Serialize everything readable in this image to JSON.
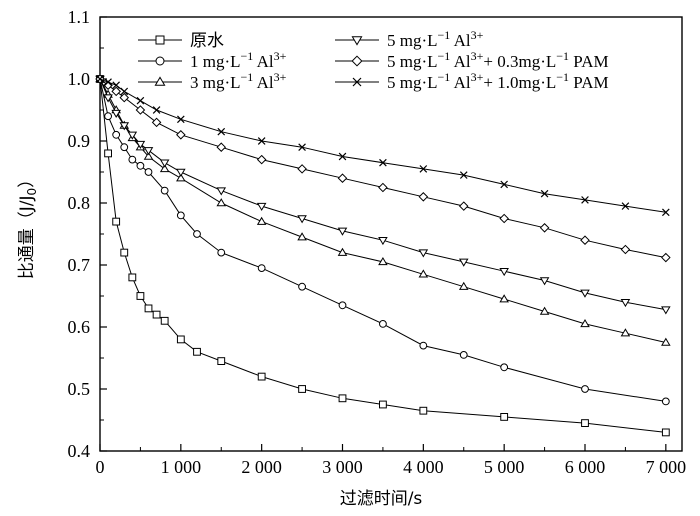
{
  "chart_data": {
    "type": "line",
    "xlabel": "过滤时间/s",
    "ylabel_main": "比通量（J/J",
    "ylabel_sub": "0",
    "ylabel_end": "）",
    "xlim": [
      0,
      7200
    ],
    "ylim": [
      0.4,
      1.1
    ],
    "xticks": [
      0,
      1000,
      2000,
      3000,
      4000,
      5000,
      6000,
      7000
    ],
    "xtick_labels": [
      "0",
      "1 000",
      "2 000",
      "3 000",
      "4 000",
      "5 000",
      "6 000",
      "7 000"
    ],
    "yticks": [
      0.4,
      0.5,
      0.6,
      0.7,
      0.8,
      0.9,
      1.0,
      1.1
    ],
    "ytick_labels": [
      "0.4",
      "0.5",
      "0.6",
      "0.7",
      "0.8",
      "0.9",
      "1.0",
      "1.1"
    ],
    "grid": false,
    "legend_position": "top",
    "series": [
      {
        "name": "原水",
        "label_parts": [
          "原水"
        ],
        "marker": "square",
        "color": "#000000",
        "x": [
          0,
          100,
          200,
          300,
          400,
          500,
          600,
          700,
          800,
          1000,
          1200,
          1500,
          2000,
          2500,
          3000,
          3500,
          4000,
          5000,
          6000,
          7000
        ],
        "y": [
          1.0,
          0.88,
          0.77,
          0.72,
          0.68,
          0.65,
          0.63,
          0.62,
          0.61,
          0.58,
          0.56,
          0.545,
          0.52,
          0.5,
          0.485,
          0.475,
          0.465,
          0.455,
          0.445,
          0.43
        ]
      },
      {
        "name": "1 mg·L−1 Al3+",
        "label_parts": [
          "1 mg·L",
          "−1",
          " Al",
          "3+"
        ],
        "marker": "circle",
        "color": "#000000",
        "x": [
          0,
          100,
          200,
          300,
          400,
          500,
          600,
          800,
          1000,
          1200,
          1500,
          2000,
          2500,
          3000,
          3500,
          4000,
          4500,
          5000,
          6000,
          7000
        ],
        "y": [
          1.0,
          0.94,
          0.91,
          0.89,
          0.87,
          0.86,
          0.85,
          0.82,
          0.78,
          0.75,
          0.72,
          0.695,
          0.665,
          0.635,
          0.605,
          0.57,
          0.555,
          0.535,
          0.5,
          0.48
        ]
      },
      {
        "name": "3 mg·L−1 Al3+",
        "label_parts": [
          "3 mg·L",
          "−1",
          " Al",
          "3+"
        ],
        "marker": "triangle-up",
        "color": "#000000",
        "x": [
          0,
          100,
          200,
          300,
          400,
          500,
          600,
          800,
          1000,
          1500,
          2000,
          2500,
          3000,
          3500,
          4000,
          4500,
          5000,
          5500,
          6000,
          6500,
          7000
        ],
        "y": [
          1.0,
          0.975,
          0.95,
          0.925,
          0.905,
          0.89,
          0.875,
          0.855,
          0.84,
          0.8,
          0.77,
          0.745,
          0.72,
          0.705,
          0.685,
          0.665,
          0.645,
          0.625,
          0.605,
          0.59,
          0.575
        ]
      },
      {
        "name": "5 mg·L−1 Al3+",
        "label_parts": [
          "5 mg·L",
          "−1",
          " Al",
          "3+"
        ],
        "marker": "triangle-down",
        "color": "#000000",
        "x": [
          0,
          100,
          200,
          300,
          400,
          500,
          600,
          800,
          1000,
          1500,
          2000,
          2500,
          3000,
          3500,
          4000,
          4500,
          5000,
          5500,
          6000,
          6500,
          7000
        ],
        "y": [
          1.0,
          0.97,
          0.945,
          0.925,
          0.91,
          0.895,
          0.885,
          0.865,
          0.85,
          0.82,
          0.795,
          0.775,
          0.755,
          0.74,
          0.72,
          0.705,
          0.69,
          0.675,
          0.655,
          0.64,
          0.628
        ]
      },
      {
        "name": "5 mg·L−1 Al3+ + 0.3mg·L−1 PAM",
        "label_parts": [
          "5 mg·L",
          "−1",
          " Al",
          "3+",
          "+ 0.3mg·L",
          "−1",
          " PAM"
        ],
        "marker": "diamond",
        "color": "#000000",
        "x": [
          0,
          100,
          200,
          300,
          500,
          700,
          1000,
          1500,
          2000,
          2500,
          3000,
          3500,
          4000,
          4500,
          5000,
          5500,
          6000,
          6500,
          7000
        ],
        "y": [
          1.0,
          0.99,
          0.98,
          0.97,
          0.95,
          0.93,
          0.91,
          0.89,
          0.87,
          0.855,
          0.84,
          0.825,
          0.81,
          0.795,
          0.775,
          0.76,
          0.74,
          0.725,
          0.712
        ]
      },
      {
        "name": "5 mg·L−1 Al3+ + 1.0mg·L−1 PAM",
        "label_parts": [
          "5 mg·L",
          "−1",
          " Al",
          "3+",
          "+ 1.0mg·L",
          "−1",
          " PAM"
        ],
        "marker": "cross",
        "color": "#000000",
        "x": [
          0,
          100,
          200,
          300,
          500,
          700,
          1000,
          1500,
          2000,
          2500,
          3000,
          3500,
          4000,
          4500,
          5000,
          5500,
          6000,
          6500,
          7000
        ],
        "y": [
          1.0,
          0.995,
          0.99,
          0.98,
          0.965,
          0.95,
          0.935,
          0.915,
          0.9,
          0.89,
          0.875,
          0.865,
          0.855,
          0.845,
          0.83,
          0.815,
          0.805,
          0.795,
          0.785
        ]
      }
    ]
  }
}
